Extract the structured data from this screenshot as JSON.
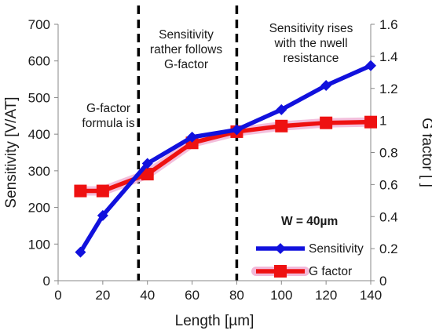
{
  "chart_data": {
    "type": "line",
    "x_axis": {
      "label": "Length [µm]",
      "min": 0,
      "max": 140,
      "ticks": [
        "0",
        "20",
        "40",
        "60",
        "80",
        "100",
        "120",
        "140"
      ]
    },
    "y_axis_left": {
      "label": "Sensitivity [V/AT]",
      "min": 0,
      "max": 700,
      "ticks": [
        "0",
        "100",
        "200",
        "300",
        "400",
        "500",
        "600",
        "700"
      ]
    },
    "y_axis_right": {
      "label": "G factor [ ]",
      "min": 0,
      "max": 1.6,
      "ticks": [
        "0",
        "0.2",
        "0.4",
        "0.6",
        "0.8",
        "1",
        "1.2",
        "1.4",
        "1.6"
      ]
    },
    "series": [
      {
        "name": "Sensitivity",
        "axis": "left",
        "color": "#1111dd",
        "marker": "diamond",
        "x": [
          10,
          20,
          40,
          60,
          80,
          100,
          120,
          140
        ],
        "y": [
          78,
          178,
          320,
          392,
          412,
          467,
          533,
          587
        ]
      },
      {
        "name": "G factor",
        "axis": "right",
        "color": "#ee1111",
        "marker": "square",
        "x": [
          10,
          20,
          40,
          60,
          80,
          100,
          120,
          140
        ],
        "y": [
          0.56,
          0.56,
          0.665,
          0.86,
          0.93,
          0.965,
          0.985,
          0.99
        ]
      }
    ],
    "vertical_lines": [
      {
        "x": 36,
        "style": "dashed"
      },
      {
        "x": 80,
        "style": "dashed"
      }
    ],
    "annotations": [
      {
        "lines": [
          "Sensitivity",
          "rather follows",
          "G-factor"
        ]
      },
      {
        "lines": [
          "Sensitivity  rises",
          "with the nwell",
          "resistance"
        ]
      },
      {
        "lines": [
          "G-factor",
          "formula is"
        ]
      }
    ],
    "width_label": "W = 40µm",
    "legend_position": "bottom-right",
    "grid": false
  }
}
